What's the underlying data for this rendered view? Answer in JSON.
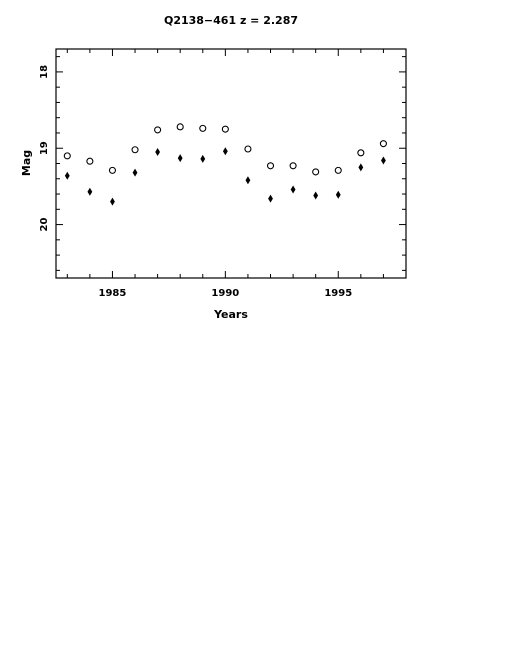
{
  "chart_data": {
    "type": "scatter",
    "title": "Q2138−461  z = 2.287",
    "xlabel": "Years",
    "ylabel": "Mag",
    "xlim": [
      1982.5,
      1998
    ],
    "ylim": [
      20.7,
      17.7
    ],
    "y_inverted": true,
    "grid": false,
    "x_ticks": [
      1985,
      1990,
      1995
    ],
    "y_ticks": [
      18,
      19,
      20
    ],
    "series": [
      {
        "marker": "open-circle",
        "x": [
          1983,
          1984,
          1985,
          1986,
          1987,
          1988,
          1989,
          1990,
          1991,
          1992,
          1993,
          1994,
          1995,
          1996,
          1997
        ],
        "y": [
          19.1,
          19.17,
          19.29,
          19.02,
          18.76,
          18.72,
          18.74,
          18.75,
          19.01,
          19.23,
          19.23,
          19.31,
          19.29,
          19.06,
          18.94
        ]
      },
      {
        "marker": "filled-diamond",
        "x": [
          1983,
          1984,
          1985,
          1986,
          1987,
          1988,
          1989,
          1990,
          1991,
          1992,
          1993,
          1994,
          1995,
          1996,
          1997
        ],
        "y": [
          19.36,
          19.57,
          19.7,
          19.32,
          19.05,
          19.13,
          19.14,
          19.04,
          19.42,
          19.66,
          19.54,
          19.62,
          19.61,
          19.25,
          19.16
        ]
      }
    ]
  }
}
